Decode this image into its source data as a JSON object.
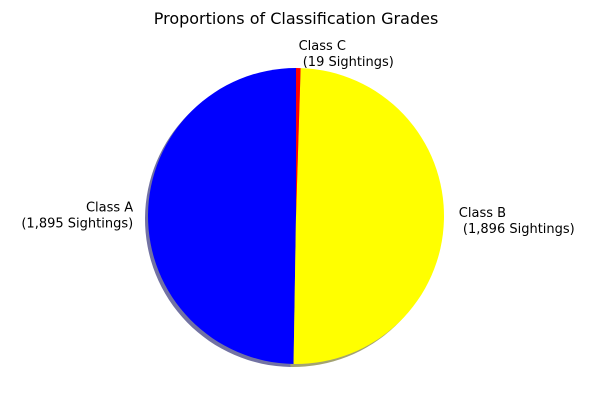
{
  "chart_data": {
    "type": "pie",
    "title": "Proportions of Classification Grades",
    "slices": [
      {
        "label": "Class A",
        "sublabel": "(1,895 Sightings)",
        "value": 1895,
        "color": "#0000ff"
      },
      {
        "label": "Class B",
        "sublabel": " (1,896 Sightings)",
        "value": 1896,
        "color": "#ffff00"
      },
      {
        "label": "Class C",
        "sublabel": " (19 Sightings)",
        "value": 19,
        "color": "#ff0000"
      }
    ],
    "shadow": true,
    "legend": "none"
  }
}
